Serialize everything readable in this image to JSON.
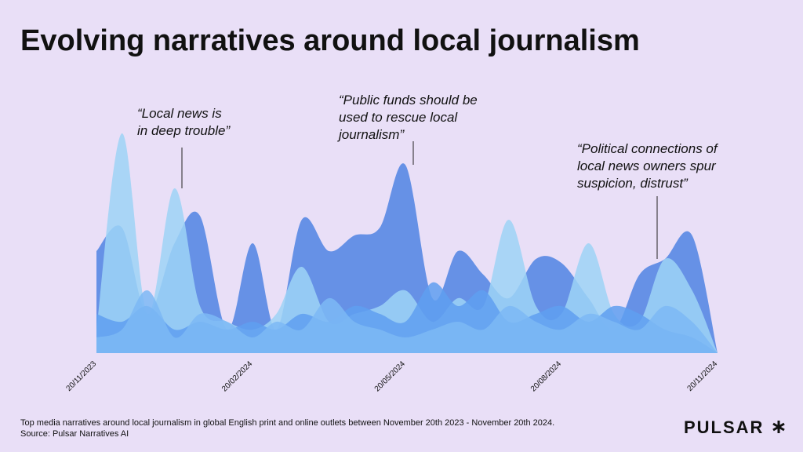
{
  "chart_data": {
    "type": "area",
    "title": "Evolving narratives around local journalism",
    "x": [
      "20/11/2023",
      "05/12/2023",
      "20/12/2023",
      "05/01/2024",
      "20/01/2024",
      "05/02/2024",
      "20/02/2024",
      "05/03/2024",
      "20/03/2024",
      "05/04/2024",
      "20/04/2024",
      "05/05/2024",
      "20/05/2024",
      "05/06/2024",
      "20/06/2024",
      "05/07/2024",
      "20/07/2024",
      "05/08/2024",
      "20/08/2024",
      "05/09/2024",
      "20/09/2024",
      "05/10/2024",
      "20/10/2024",
      "05/11/2024",
      "20/11/2024"
    ],
    "xticks": [
      "20/11/2023",
      "20/02/2024",
      "20/05/2024",
      "20/08/2024",
      "20/11/2024"
    ],
    "ylim": [
      0,
      300
    ],
    "series": [
      {
        "color": "#4f84e3",
        "values": [
          130,
          160,
          50,
          140,
          175,
          30,
          140,
          30,
          170,
          130,
          150,
          160,
          240,
          70,
          130,
          100,
          70,
          120,
          115,
          70,
          30,
          100,
          120,
          150,
          0
        ]
      },
      {
        "color": "#9dd3f6",
        "values": [
          30,
          280,
          50,
          210,
          60,
          40,
          30,
          50,
          110,
          40,
          50,
          60,
          80,
          40,
          70,
          60,
          170,
          60,
          50,
          140,
          50,
          40,
          120,
          80,
          0
        ]
      },
      {
        "color": "#5f9ff0",
        "values": [
          50,
          40,
          60,
          30,
          40,
          30,
          40,
          30,
          50,
          40,
          60,
          50,
          40,
          90,
          60,
          80,
          40,
          50,
          60,
          40,
          60,
          50,
          30,
          20,
          0
        ]
      },
      {
        "color": "#7cb8f5",
        "values": [
          20,
          30,
          80,
          20,
          50,
          40,
          20,
          40,
          30,
          70,
          40,
          30,
          20,
          30,
          40,
          30,
          60,
          40,
          30,
          50,
          40,
          30,
          60,
          40,
          0
        ]
      }
    ],
    "annotations": [
      {
        "lines": [
          "“Local news is",
          "in deep trouble”"
        ]
      },
      {
        "lines": [
          "“Public funds should be",
          "used to rescue local",
          "journalism”"
        ]
      },
      {
        "lines": [
          "“Political connections of",
          "local news owners spur",
          "suspicion, distrust”"
        ]
      }
    ],
    "note": "Top media narratives around local journalism in global English print and online outlets between November 20th 2023 - November 20th 2024.",
    "source": "Source: Pulsar Narratives AI",
    "logo": "PULSAR"
  }
}
